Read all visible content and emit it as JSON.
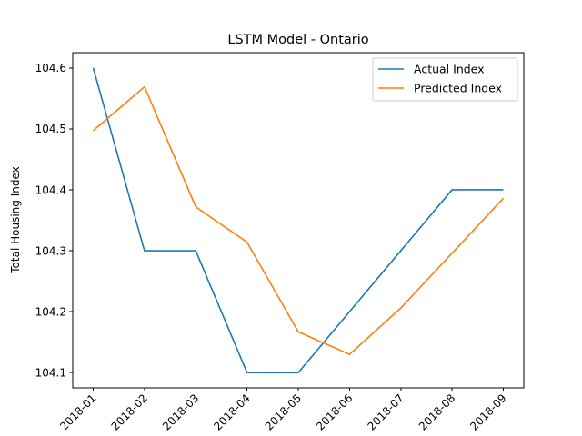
{
  "chart_data": {
    "type": "line",
    "title": "LSTM Model - Ontario",
    "xlabel": "",
    "ylabel": "Total Housing Index",
    "categories": [
      "2018-01",
      "2018-02",
      "2018-03",
      "2018-04",
      "2018-05",
      "2018-06",
      "2018-07",
      "2018-08",
      "2018-09"
    ],
    "yticks": [
      "104.1",
      "104.2",
      "104.3",
      "104.4",
      "104.5",
      "104.6"
    ],
    "ylim": [
      104.075,
      104.625
    ],
    "grid": false,
    "legend_position": "top-right",
    "series": [
      {
        "name": "Actual Index",
        "color": "#1f77b4",
        "values": [
          104.6,
          104.3,
          104.3,
          104.1,
          104.1,
          104.2,
          104.3,
          104.4,
          104.4
        ]
      },
      {
        "name": "Predicted Index",
        "color": "#ff7f0e",
        "values": [
          104.497,
          104.569,
          104.372,
          104.314,
          104.167,
          104.13,
          104.206,
          104.296,
          104.386
        ]
      }
    ]
  }
}
